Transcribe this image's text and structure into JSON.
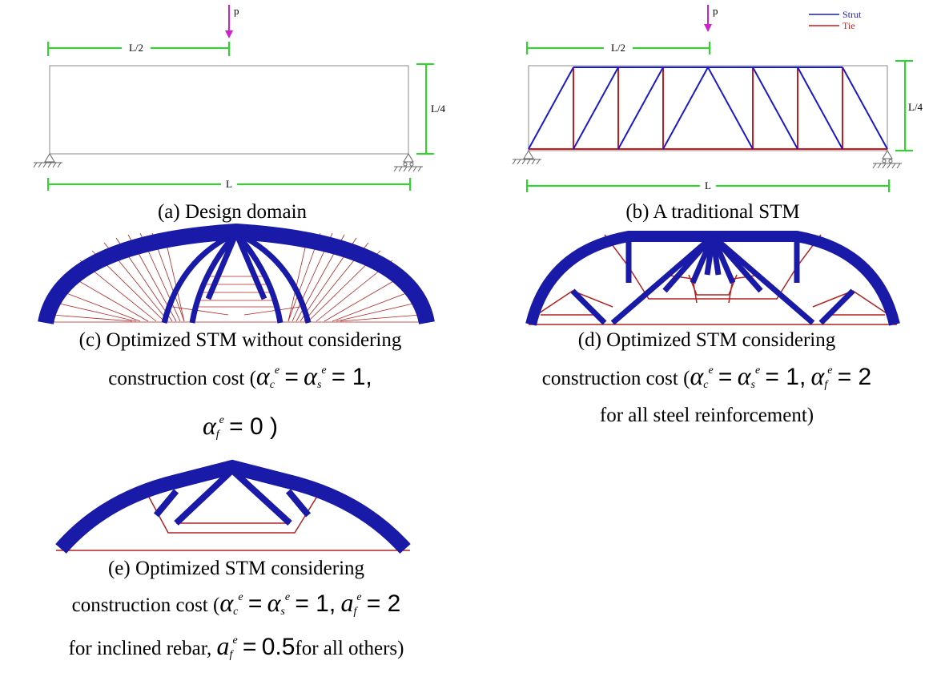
{
  "panel_a": {
    "load_label": "p",
    "half_span_label": "L/2",
    "height_label": "L/4",
    "span_label": "L",
    "caption": "(a) Design domain"
  },
  "panel_b": {
    "load_label": "p",
    "half_span_label": "L/2",
    "height_label": "L/4",
    "span_label": "L",
    "legend": [
      {
        "label": "Strut",
        "color": "#1a1acc"
      },
      {
        "label": "Tie",
        "color": "#cc1a1a"
      }
    ],
    "caption": "(b) A traditional STM"
  },
  "panel_c": {
    "caption_line1": "(c) Optimized STM without considering",
    "caption_line2_prefix": "construction cost (",
    "caption_line2_suffix": "= 1,",
    "caption_line3_suffix": "= 0 )"
  },
  "panel_d": {
    "caption_line1": "(d) Optimized STM considering",
    "caption_line2_prefix": "construction cost (",
    "caption_line2_mid": "= 1,",
    "caption_line2_suffix": "= 2",
    "caption_line3": "for all steel reinforcement)"
  },
  "panel_e": {
    "caption_line1": "(e) Optimized STM considering",
    "caption_line2_prefix": "construction cost (",
    "caption_line2_mid": "= 1,",
    "caption_line2_suffix": "= 2",
    "caption_line3_prefix": "for inclined rebar,",
    "caption_line3_value": "0.5",
    "caption_line3_suffix": "for all others)"
  },
  "symbols": {
    "alpha": "α",
    "a_script": "a",
    "eq": "=",
    "sub_c": "c",
    "sub_s": "s",
    "sub_f": "f",
    "sup_e": "e"
  },
  "colors": {
    "strut": "#1a1aa8",
    "tie": "#b22222",
    "dimension": "#22dd22",
    "load": "#cc22cc",
    "outline": "#888888"
  }
}
